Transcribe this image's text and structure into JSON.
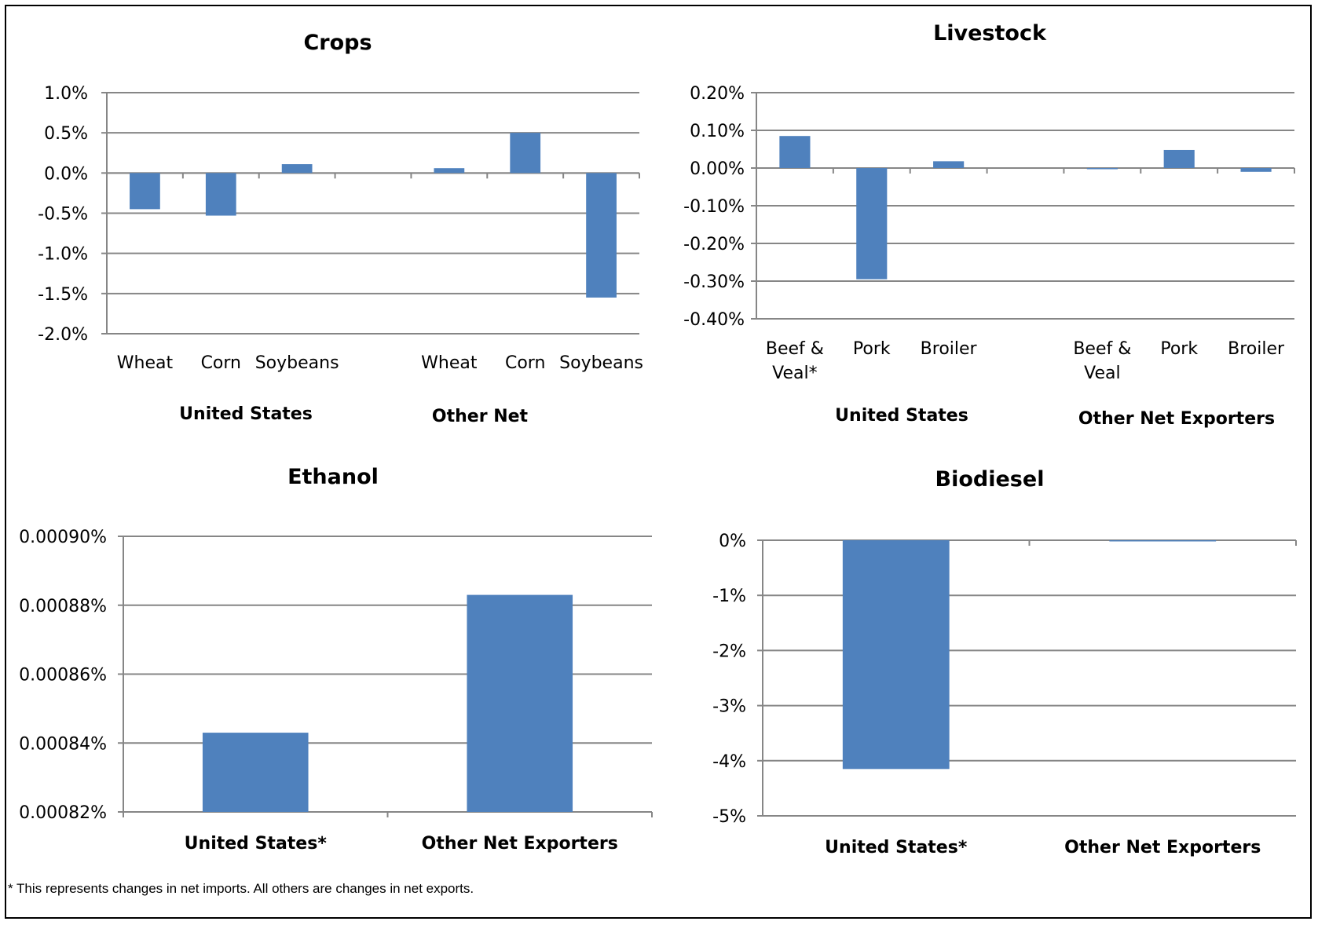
{
  "footnote": "* This represents changes in net imports. All others are changes in net exports.",
  "chart_data": [
    {
      "type": "bar",
      "title": "Crops",
      "categories": [
        "Wheat",
        "Corn",
        "Soybeans",
        "Wheat",
        "Corn",
        "Soybeans"
      ],
      "groups": [
        "United States",
        "Other Net"
      ],
      "values": [
        -0.45,
        -0.53,
        0.11,
        0.06,
        0.5,
        -1.55
      ],
      "ylim": [
        -2.0,
        1.0
      ],
      "yticks": [
        "1.0%",
        "0.5%",
        "0.0%",
        "-0.5%",
        "-1.0%",
        "-1.5%",
        "-2.0%"
      ],
      "unit": "%",
      "grid": true,
      "color": "#4f81bd"
    },
    {
      "type": "bar",
      "title": "Livestock",
      "categories": [
        "Beef & Veal*",
        "Pork",
        "Broiler",
        "Beef & Veal",
        "Pork",
        "Broiler"
      ],
      "groups": [
        "United States",
        "Other Net Exporters"
      ],
      "values": [
        0.085,
        -0.295,
        0.018,
        -0.003,
        0.048,
        -0.01
      ],
      "ylim": [
        -0.4,
        0.2
      ],
      "yticks": [
        "0.20%",
        "0.10%",
        "0.00%",
        "-0.10%",
        "-0.20%",
        "-0.30%",
        "-0.40%"
      ],
      "unit": "%",
      "grid": true,
      "color": "#4f81bd"
    },
    {
      "type": "bar",
      "title": "Ethanol",
      "categories": [
        "United States*",
        "Other Net Exporters"
      ],
      "values": [
        0.000843,
        0.000883
      ],
      "ylim": [
        0.00082,
        0.0009
      ],
      "yticks": [
        "0.00090%",
        "0.00088%",
        "0.00086%",
        "0.00084%",
        "0.00082%"
      ],
      "unit": "%",
      "grid": true,
      "color": "#4f81bd"
    },
    {
      "type": "bar",
      "title": "Biodiesel",
      "categories": [
        "United States*",
        "Other Net Exporters"
      ],
      "values": [
        -4.15,
        -0.02
      ],
      "ylim": [
        -5,
        0
      ],
      "yticks": [
        "0%",
        "-1%",
        "-2%",
        "-3%",
        "-4%",
        "-5%"
      ],
      "unit": "%",
      "grid": true,
      "color": "#4f81bd"
    }
  ]
}
